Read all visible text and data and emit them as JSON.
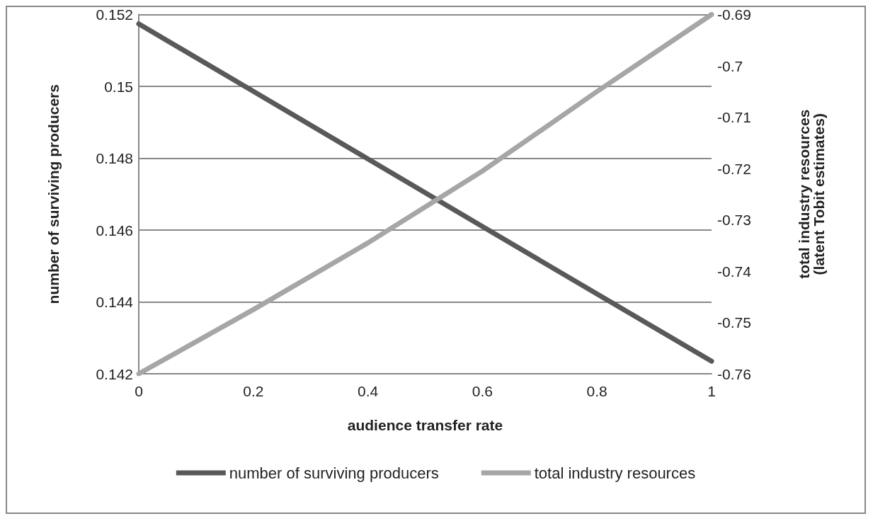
{
  "chart_data": {
    "type": "line",
    "xlabel": "audience transfer rate",
    "ylabel": "number of surviving producers",
    "y2label": "total industry resources\n(latent Tobit estimates)",
    "x": [
      0,
      0.2,
      0.4,
      0.6,
      0.8,
      1
    ],
    "series": [
      {
        "name": "number of surviving producers",
        "color": "#595959",
        "values": [
          0.15174,
          0.14986,
          0.14798,
          0.1461,
          0.14422,
          0.14235
        ]
      },
      {
        "name": "total industry resources",
        "color": "#a6a6a6",
        "axis": "y2",
        "values": [
          -0.76,
          -0.7475,
          -0.7345,
          -0.7205,
          -0.705,
          -0.69
        ]
      }
    ],
    "xlim": [
      0,
      1
    ],
    "xticks": [
      0,
      0.2,
      0.4,
      0.6,
      0.8,
      1
    ],
    "ylim": [
      0.142,
      0.152
    ],
    "yticks": [
      0.142,
      0.144,
      0.146,
      0.148,
      0.15,
      0.152
    ],
    "y2lim": [
      -0.76,
      -0.69
    ],
    "y2ticks": [
      -0.76,
      -0.75,
      -0.74,
      -0.73,
      -0.72,
      -0.71,
      -0.7,
      -0.69
    ],
    "grid": "y",
    "legend": "bottom",
    "marker": "none",
    "line_style": "solid"
  }
}
